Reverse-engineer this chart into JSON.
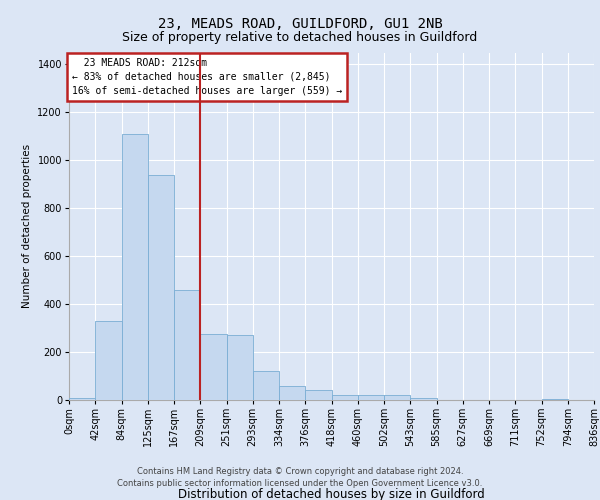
{
  "title1": "23, MEADS ROAD, GUILDFORD, GU1 2NB",
  "title2": "Size of property relative to detached houses in Guildford",
  "xlabel": "Distribution of detached houses by size in Guildford",
  "ylabel": "Number of detached properties",
  "footer1": "Contains HM Land Registry data © Crown copyright and database right 2024.",
  "footer2": "Contains public sector information licensed under the Open Government Licence v3.0.",
  "annotation_line1": "  23 MEADS ROAD: 212sqm  ",
  "annotation_line2": "← 83% of detached houses are smaller (2,845)",
  "annotation_line3": "16% of semi-detached houses are larger (559) →",
  "bar_values": [
    7,
    330,
    1110,
    940,
    460,
    275,
    270,
    120,
    60,
    40,
    20,
    20,
    20,
    10,
    0,
    0,
    0,
    0,
    5,
    0
  ],
  "bin_labels": [
    "0sqm",
    "42sqm",
    "84sqm",
    "125sqm",
    "167sqm",
    "209sqm",
    "251sqm",
    "293sqm",
    "334sqm",
    "376sqm",
    "418sqm",
    "460sqm",
    "502sqm",
    "543sqm",
    "585sqm",
    "627sqm",
    "669sqm",
    "711sqm",
    "752sqm",
    "794sqm",
    "836sqm"
  ],
  "bar_color": "#c5d8ef",
  "bar_edge_color": "#7aadd4",
  "red_line_bin": 5,
  "ylim": [
    0,
    1450
  ],
  "yticks": [
    0,
    200,
    400,
    600,
    800,
    1000,
    1200,
    1400
  ],
  "background_color": "#dce6f5",
  "plot_bg_color": "#dce6f5",
  "annotation_box_color": "#ffffff",
  "annotation_border_color": "#bb2222",
  "red_line_color": "#bb2222",
  "grid_color": "#ffffff",
  "title1_fontsize": 10,
  "title2_fontsize": 9,
  "xlabel_fontsize": 8.5,
  "ylabel_fontsize": 7.5,
  "tick_fontsize": 7,
  "annotation_fontsize": 7,
  "footer_fontsize": 6
}
